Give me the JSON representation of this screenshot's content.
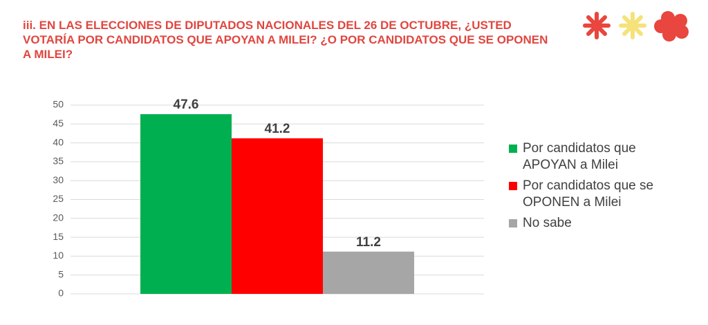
{
  "chart_data": {
    "type": "bar",
    "title": "iii. EN LAS ELECCIONES DE DIPUTADOS NACIONALES DEL 26 DE OCTUBRE, ¿USTED VOTARÍA POR CANDIDATOS QUE APOYAN A MILEI? ¿O POR CANDIDATOS QUE SE OPONEN A MILEI?",
    "categories": [
      null
    ],
    "series": [
      {
        "name": "Por candidatos que APOYAN a Milei",
        "color": "#00b050",
        "values": [
          47.6
        ]
      },
      {
        "name": "Por candidatos que se OPONEN a Milei",
        "color": "#ff0000",
        "values": [
          41.2
        ]
      },
      {
        "name": "No sabe",
        "color": "#a6a6a6",
        "values": [
          11.2
        ]
      }
    ],
    "ylim": [
      0,
      50
    ],
    "yticks": [
      0,
      5,
      10,
      15,
      20,
      25,
      30,
      35,
      40,
      45,
      50
    ],
    "grid": true,
    "legend": "right"
  }
}
